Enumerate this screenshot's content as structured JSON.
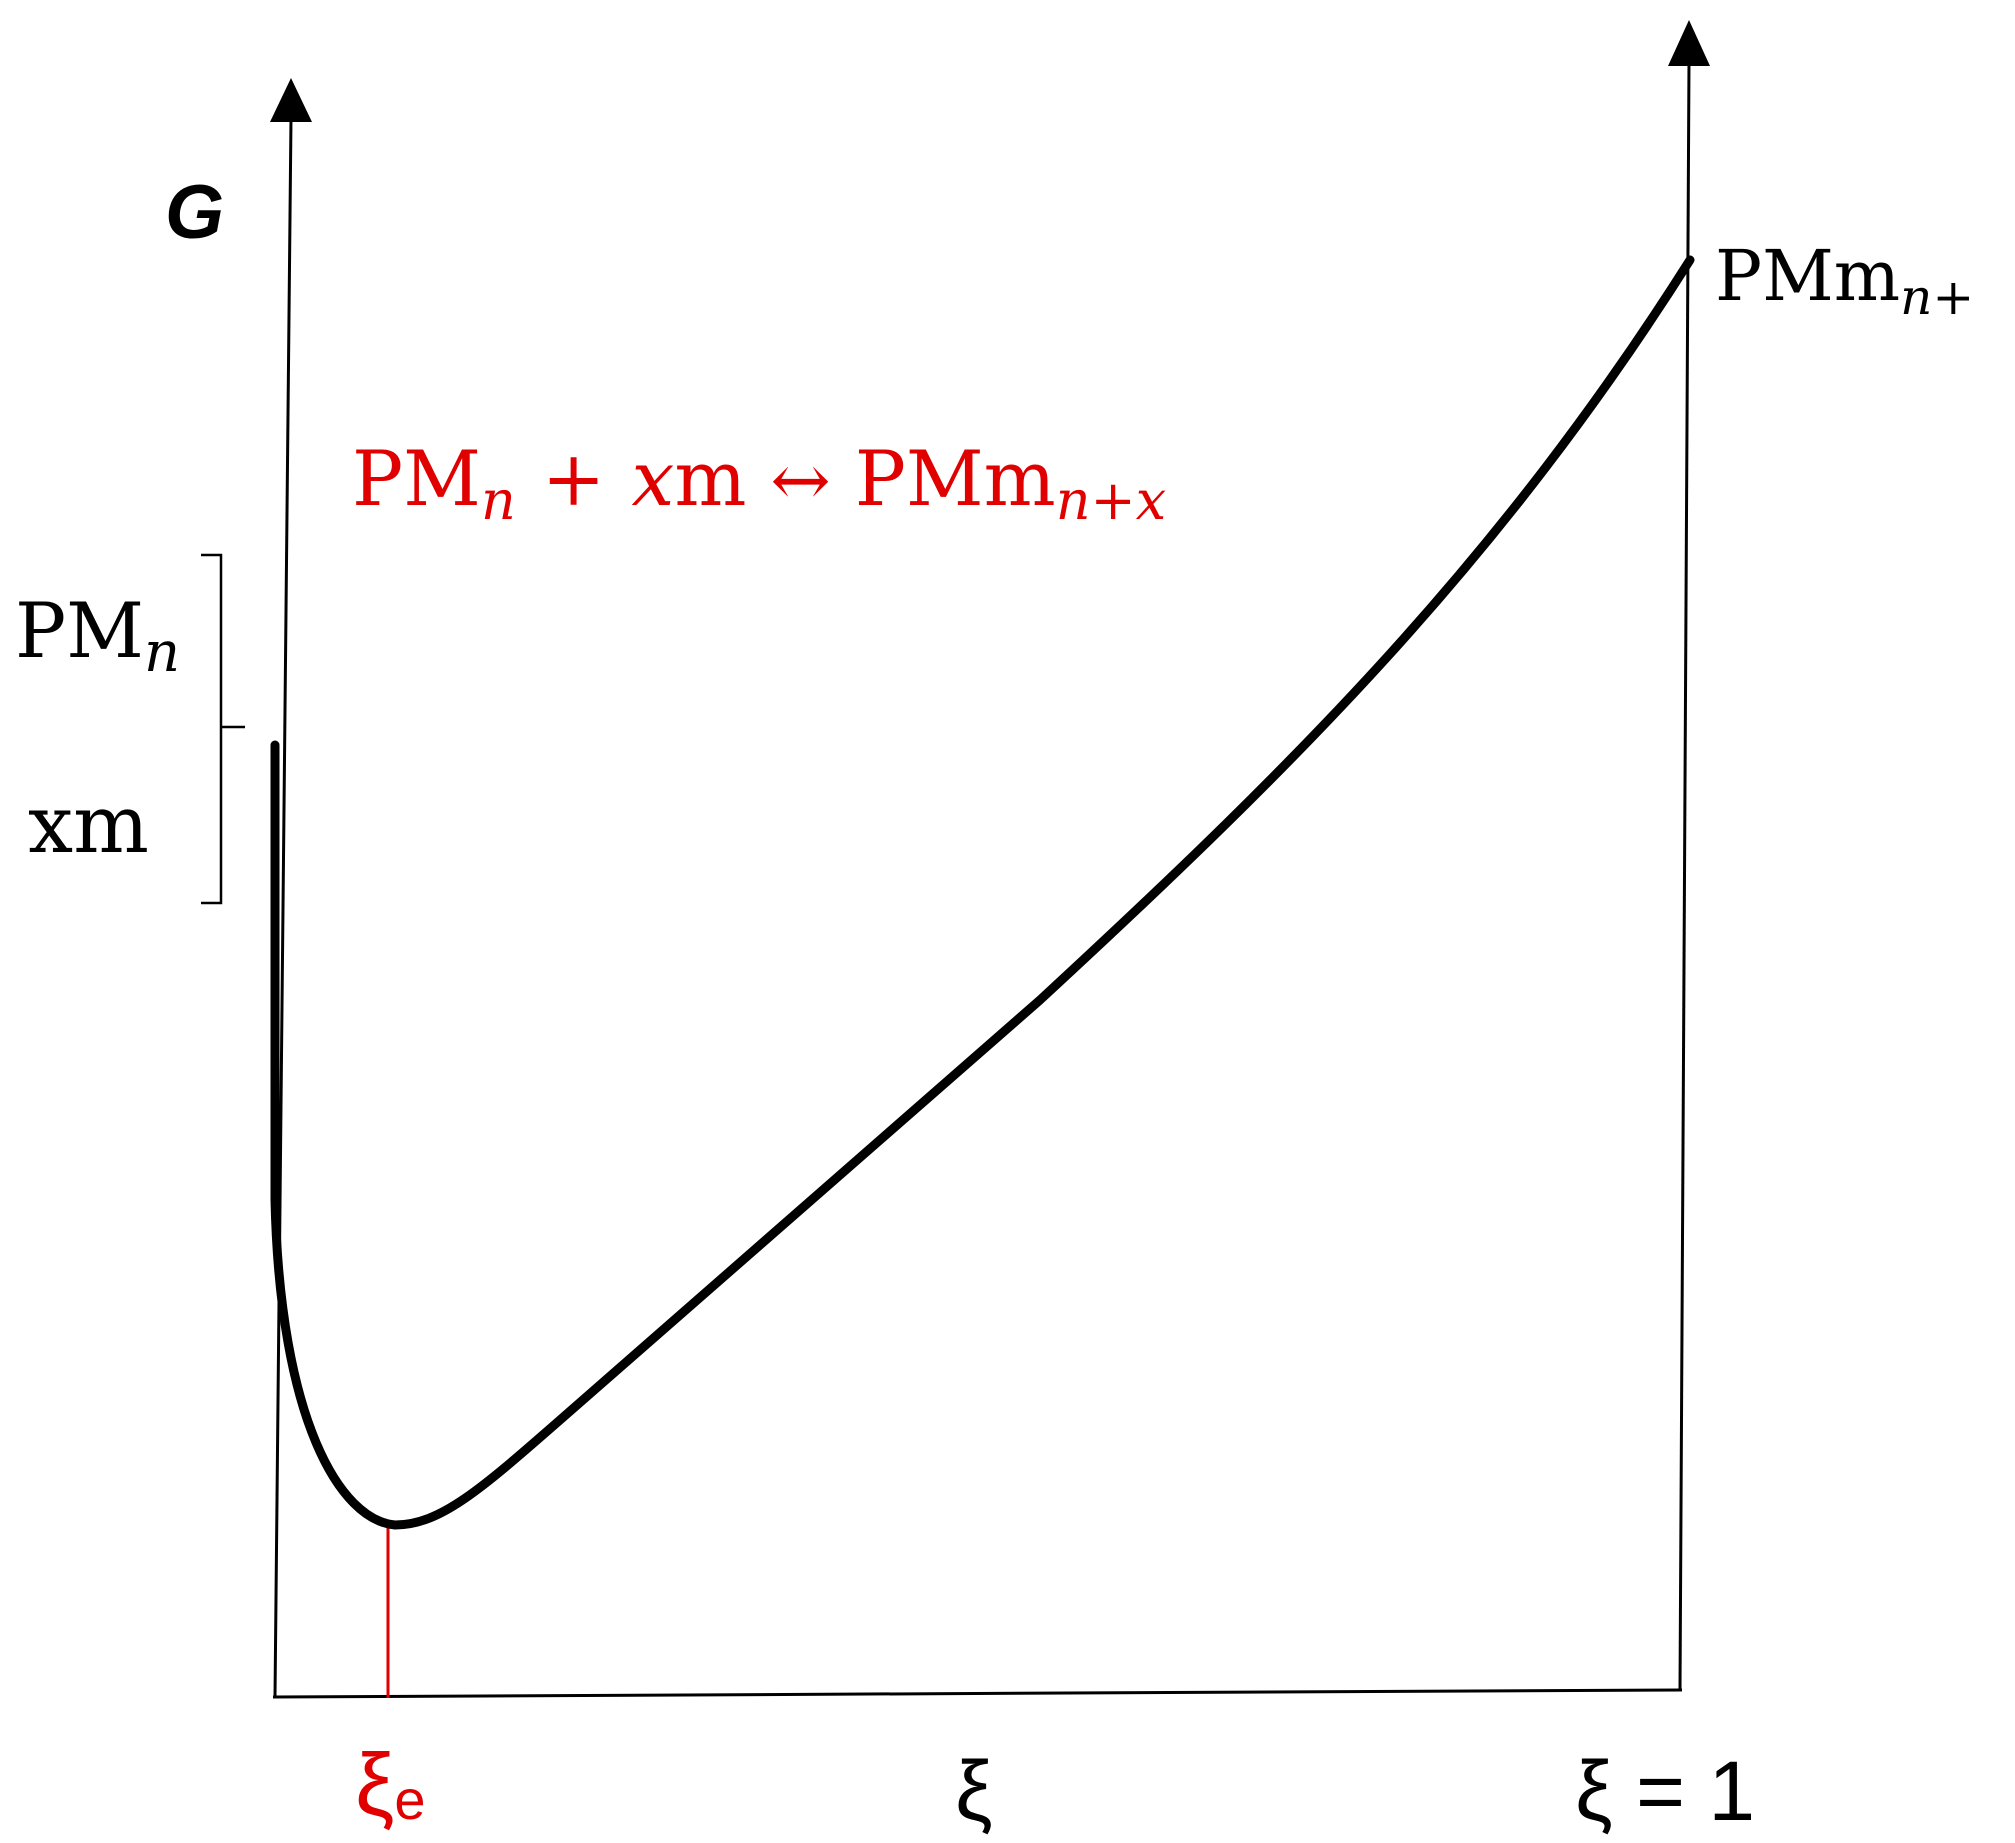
{
  "axes": {
    "y_label": "G",
    "x_label": "ξ",
    "x_end_label": "ξ = 1"
  },
  "equilibrium": {
    "label_main": "ξ",
    "label_sub": "e",
    "color": "#e00000"
  },
  "left_labels": {
    "top": {
      "main": "PM",
      "sub": "n"
    },
    "bottom": {
      "main": "xm"
    }
  },
  "right_label": {
    "main": "PMm",
    "sub": "n+"
  },
  "reaction": {
    "reactant_main": "PM",
    "reactant_sub": "n",
    "plus": "+",
    "x": "x",
    "m": "m",
    "arrow": "↔",
    "product_main": "PMm",
    "product_sub": "n+x",
    "color": "#e00000"
  },
  "colors": {
    "curve": "#000000",
    "axis": "#000000",
    "highlight": "#e00000"
  }
}
